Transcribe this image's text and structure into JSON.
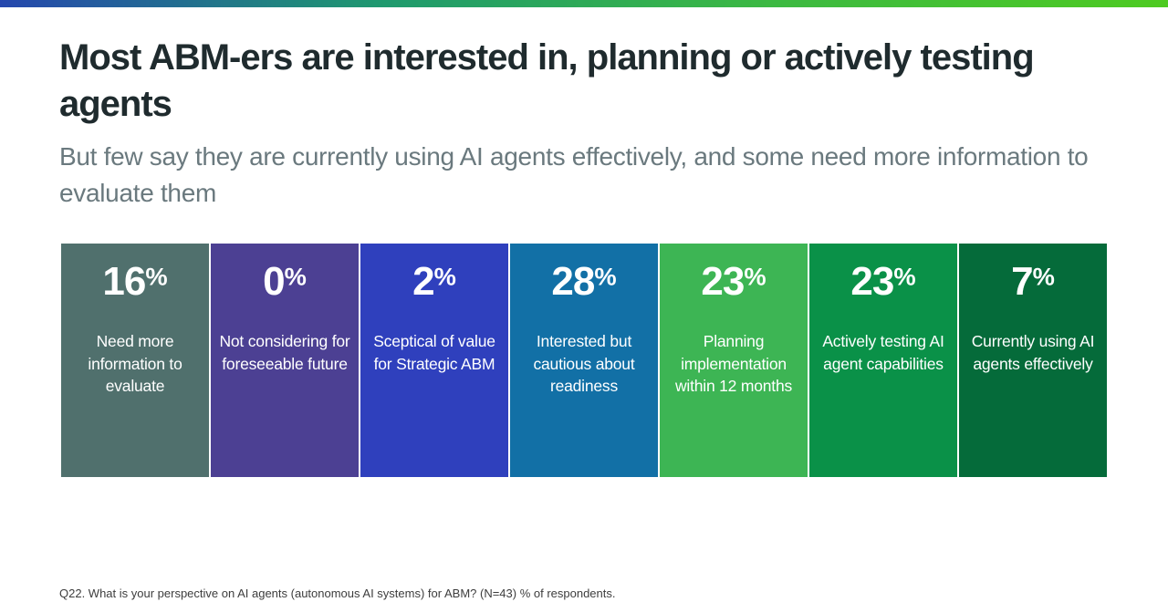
{
  "accent_bar": {
    "gradient": "linear-gradient(90deg, #2547ae 0%, #1f9a6e 33%, #3cb942 66%, #4ecb21 100%)",
    "color_left": "#2547ae",
    "color_mid": "#1f9a6e",
    "color_right": "#4ecb21"
  },
  "header": {
    "title": "Most ABM-ers are interested in, planning or actively testing agents",
    "subtitle": "But few say they are currently using AI agents effectively, and some need more information to evaluate them"
  },
  "chart_data": {
    "type": "bar",
    "title": "Most ABM-ers are interested in, planning or actively testing agents",
    "subtitle": "But few say they are currently using AI agents effectively, and some need more information to evaluate them",
    "categories": [
      "Need more information to evaluate",
      "Not considering for foreseeable future",
      "Sceptical of value for Strategic ABM",
      "Interested but cautious about readiness",
      "Planning implementation within 12 months",
      "Actively testing AI agent capabilities",
      "Currently using AI agents effectively"
    ],
    "values": [
      16,
      0,
      2,
      28,
      23,
      23,
      7
    ],
    "unit": "%",
    "colors": [
      "#50706d",
      "#4c4093",
      "#2f40bd",
      "#1270a6",
      "#3db554",
      "#0a9148",
      "#056b3a"
    ],
    "layout": "seven equal-width colored blocks in a row, percentage on top, category label below",
    "legend": "none",
    "source_note": "Q22. What is your perspective on AI agents (autonomous AI systems) for ABM? (N=43) % of respondents."
  },
  "segments": [
    {
      "number": "16",
      "unit": "%",
      "label": "Need more information to evaluate",
      "color": "#50706d"
    },
    {
      "number": "0",
      "unit": "%",
      "label": "Not considering for foreseeable future",
      "color": "#4c4093"
    },
    {
      "number": "2",
      "unit": "%",
      "label": "Sceptical of value for Strategic ABM",
      "color": "#2f40bd"
    },
    {
      "number": "28",
      "unit": "%",
      "label": "Interested but cautious about readiness",
      "color": "#1270a6"
    },
    {
      "number": "23",
      "unit": "%",
      "label": "Planning implementation within 12 months",
      "color": "#3db554"
    },
    {
      "number": "23",
      "unit": "%",
      "label": "Actively testing AI agent capabilities",
      "color": "#0a9148"
    },
    {
      "number": "7",
      "unit": "%",
      "label": "Currently using AI agents effectively",
      "color": "#056b3a"
    }
  ],
  "footnote": "Q22. What is your perspective on AI agents (autonomous AI systems) for ABM? (N=43) % of respondents."
}
